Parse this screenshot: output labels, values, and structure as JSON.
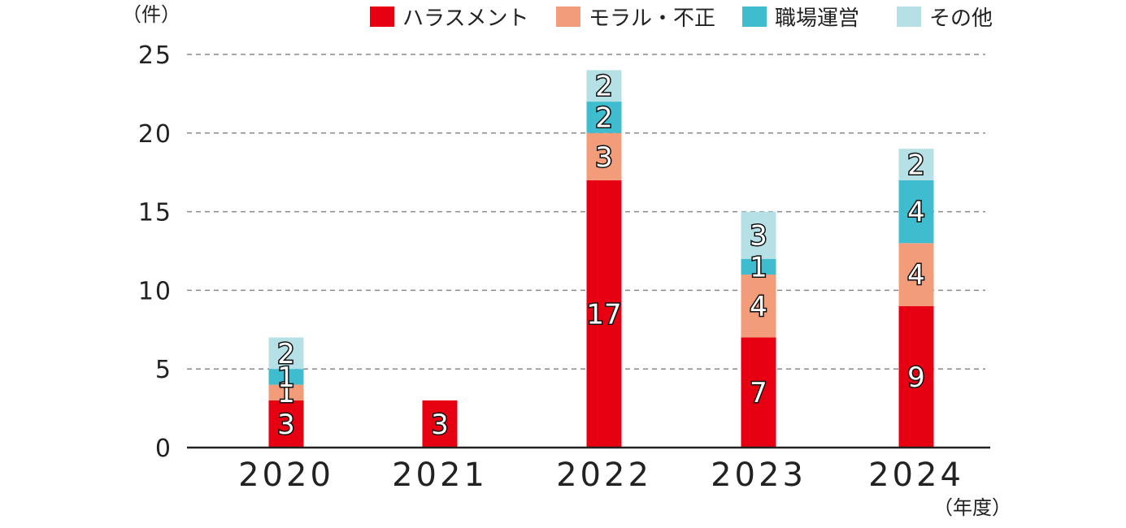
{
  "chart_data": {
    "type": "bar",
    "stacked": true,
    "y_unit_label": "（件）",
    "x_unit_label": "（年度）",
    "categories": [
      "2020",
      "2021",
      "2022",
      "2023",
      "2024"
    ],
    "y_ticks": [
      "0",
      "5",
      "10",
      "15",
      "20",
      "25"
    ],
    "ylim": [
      0,
      25
    ],
    "grid": "horizontal dashed",
    "legend_position": "top-right",
    "series": [
      {
        "name": "ハラスメント",
        "color": "#e60012",
        "values": [
          3,
          3,
          17,
          7,
          9
        ],
        "labels": [
          "3",
          "3",
          "17",
          "7",
          "9"
        ]
      },
      {
        "name": "モラル・不正",
        "color": "#f29c7a",
        "values": [
          1,
          0,
          3,
          4,
          4
        ],
        "labels": [
          "1",
          "",
          "3",
          "4",
          "4"
        ]
      },
      {
        "name": "職場運営",
        "color": "#3fbccd",
        "values": [
          1,
          0,
          2,
          1,
          4
        ],
        "labels": [
          "1",
          "",
          "2",
          "1",
          "4"
        ]
      },
      {
        "name": "その他",
        "color": "#b5e0e6",
        "values": [
          2,
          0,
          2,
          3,
          2
        ],
        "labels": [
          "2",
          "",
          "2",
          "3",
          "2"
        ]
      }
    ]
  }
}
